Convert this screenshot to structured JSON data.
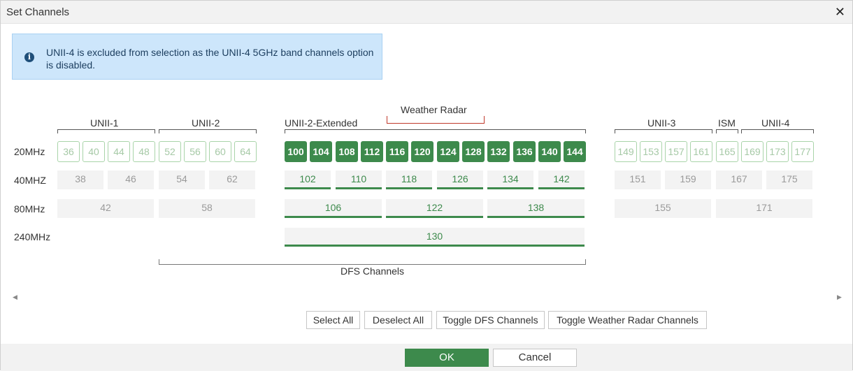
{
  "dialog": {
    "title": "Set Channels"
  },
  "info": {
    "icon": "info-icon",
    "text": "UNII-4 is excluded from selection as the UNII-4 5GHz band channels option is disabled."
  },
  "groups": {
    "unii1": "UNII-1",
    "unii2": "UNII-2",
    "unii2ext": "UNII-2-Extended",
    "weather": "Weather Radar",
    "unii3": "UNII-3",
    "ism": "ISM",
    "unii4": "UNII-4",
    "dfs": "DFS Channels"
  },
  "rows": {
    "r20": "20MHz",
    "r40": "40MHZ",
    "r80": "80MHz",
    "r240": "240MHz"
  },
  "ch20": {
    "c36": "36",
    "c40": "40",
    "c44": "44",
    "c48": "48",
    "c52": "52",
    "c56": "56",
    "c60": "60",
    "c64": "64",
    "c100": "100",
    "c104": "104",
    "c108": "108",
    "c112": "112",
    "c116": "116",
    "c120": "120",
    "c124": "124",
    "c128": "128",
    "c132": "132",
    "c136": "136",
    "c140": "140",
    "c144": "144",
    "c149": "149",
    "c153": "153",
    "c157": "157",
    "c161": "161",
    "c165": "165",
    "c169": "169",
    "c173": "173",
    "c177": "177"
  },
  "ch40": {
    "c38": "38",
    "c46": "46",
    "c54": "54",
    "c62": "62",
    "c102": "102",
    "c110": "110",
    "c118": "118",
    "c126": "126",
    "c134": "134",
    "c142": "142",
    "c151": "151",
    "c159": "159",
    "c167": "167",
    "c175": "175"
  },
  "ch80": {
    "c42": "42",
    "c58": "58",
    "c106": "106",
    "c122": "122",
    "c138": "138",
    "c155": "155",
    "c171": "171"
  },
  "ch240": {
    "c130": "130"
  },
  "selected_channels": [
    "100",
    "104",
    "108",
    "112",
    "116",
    "120",
    "124",
    "128",
    "132",
    "136",
    "140",
    "144",
    "102",
    "110",
    "118",
    "126",
    "134",
    "142",
    "106",
    "122",
    "138",
    "130"
  ],
  "buttons": {
    "select_all": "Select All",
    "deselect_all": "Deselect All",
    "toggle_dfs": "Toggle DFS Channels",
    "toggle_weather": "Toggle Weather Radar Channels",
    "ok": "OK",
    "cancel": "Cancel"
  },
  "colors": {
    "selected": "#3d8a4c",
    "info_bg": "#cde6fb",
    "weather_bracket": "#c0392b"
  }
}
